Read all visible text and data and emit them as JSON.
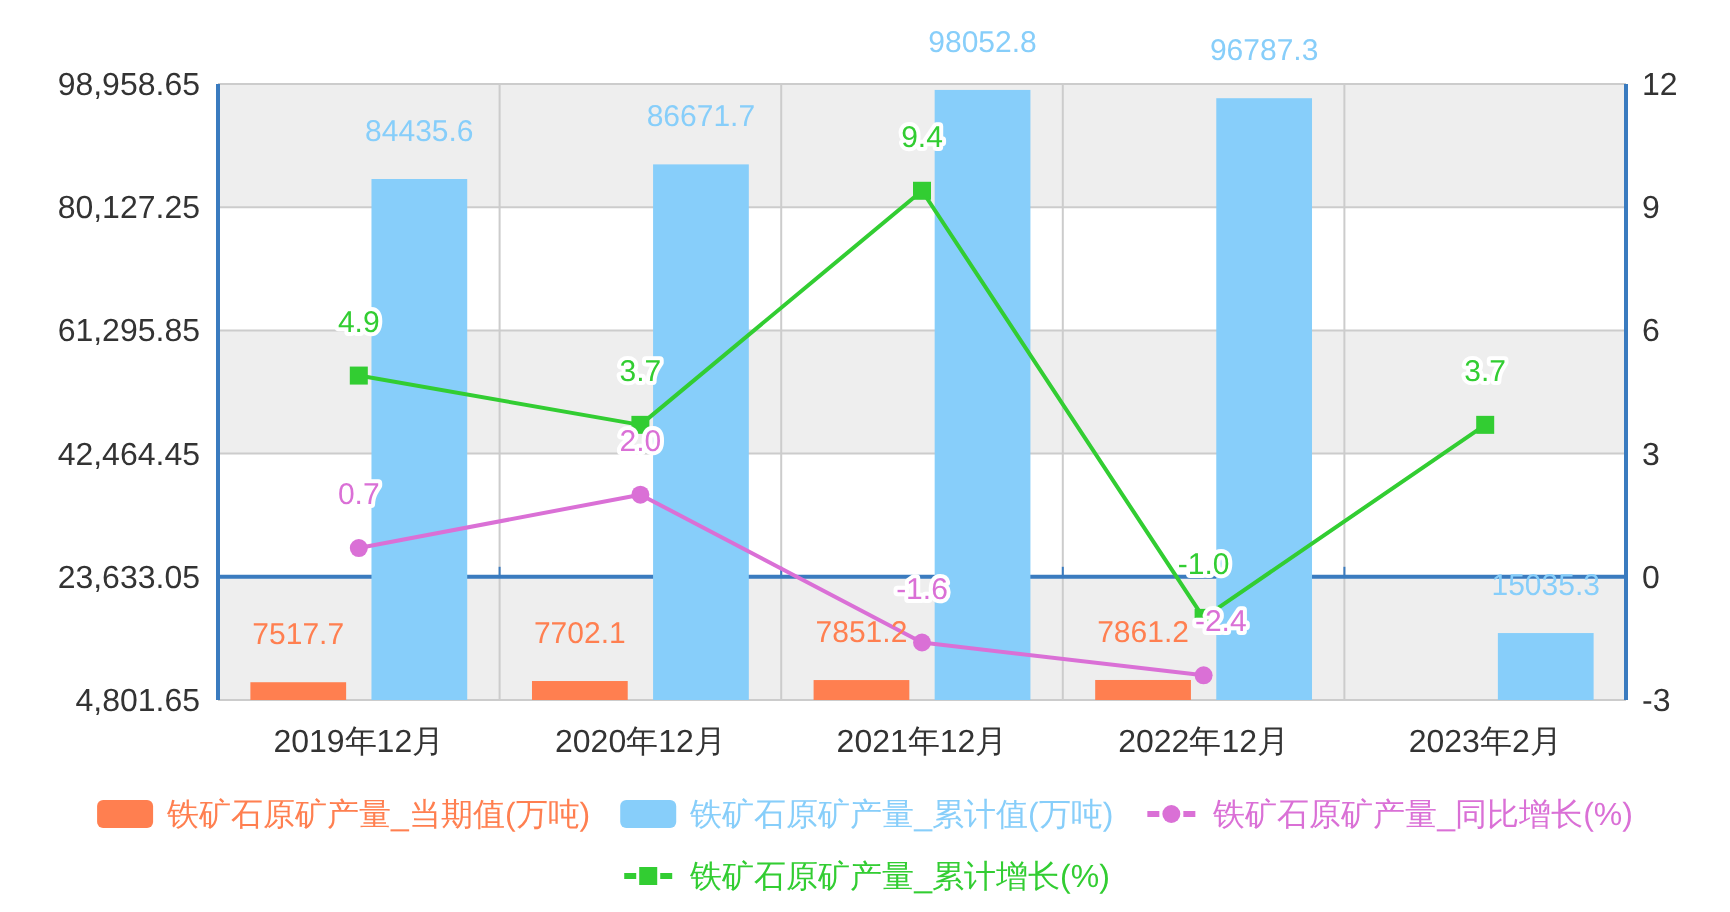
{
  "chart_data": {
    "type": "bar",
    "categories": [
      "2019年12月",
      "2020年12月",
      "2021年12月",
      "2022年12月",
      "2023年2月"
    ],
    "series": [
      {
        "name": "铁矿石原矿产量_当期值(万吨)",
        "color": "#ff7f50",
        "values": [
          7517.7,
          7702.1,
          7851.2,
          7861.2,
          null
        ],
        "value_labels": [
          "7517.7",
          "7702.1",
          "7851.2",
          "7861.2",
          null
        ]
      },
      {
        "name": "铁矿石原矿产量_累计值(万吨)",
        "color": "#87cefa",
        "values": [
          84435.6,
          86671.7,
          98052.8,
          96787.3,
          15035.3
        ],
        "value_labels": [
          "84435.6",
          "86671.7",
          "98052.8",
          "96787.3",
          "15035.3"
        ]
      },
      {
        "name": "铁矿石原矿产量_同比增长(%)",
        "type": "line",
        "axis": "y2",
        "marker": "circle",
        "color": "#da70d6",
        "values": [
          0.7,
          2.0,
          -1.6,
          -2.4,
          null
        ],
        "value_labels": [
          "0.7",
          "2.0",
          "-1.6",
          "-2.4",
          null
        ]
      },
      {
        "name": "铁矿石原矿产量_累计增长(%)",
        "type": "line",
        "axis": "y2",
        "marker": "square",
        "color": "#32cd32",
        "values": [
          4.9,
          3.7,
          9.4,
          -1.0,
          3.7
        ],
        "value_labels": [
          "4.9",
          "3.7",
          "9.4",
          "-1.0",
          "3.7"
        ]
      }
    ],
    "ylim": [
      4801.65,
      98958.65
    ],
    "yticks": [
      {
        "value": 4801.65,
        "label": "4,801.65"
      },
      {
        "value": 23633.05,
        "label": "23,633.05"
      },
      {
        "value": 42464.45,
        "label": "42,464.45"
      },
      {
        "value": 61295.85,
        "label": "61,295.85"
      },
      {
        "value": 80127.25,
        "label": "80,127.25"
      },
      {
        "value": 98958.65,
        "label": "98,958.65"
      }
    ],
    "y2lim": [
      -3,
      12
    ],
    "y2ticks": [
      -3,
      0,
      3,
      6,
      9,
      12
    ],
    "grid": true,
    "legend": "bottom",
    "bands": [
      {
        "axis": "y",
        "from": 4801.65,
        "to": 23633.05,
        "color": "#eeeeee"
      },
      {
        "axis": "y",
        "from": 42464.45,
        "to": 61295.85,
        "color": "#eeeeee"
      },
      {
        "axis": "y",
        "from": 80127.25,
        "to": 98958.65,
        "color": "#eeeeee"
      }
    ],
    "ref_lines": [
      {
        "axis": "y2",
        "value": 0,
        "color": "#3a7bbf"
      }
    ]
  }
}
